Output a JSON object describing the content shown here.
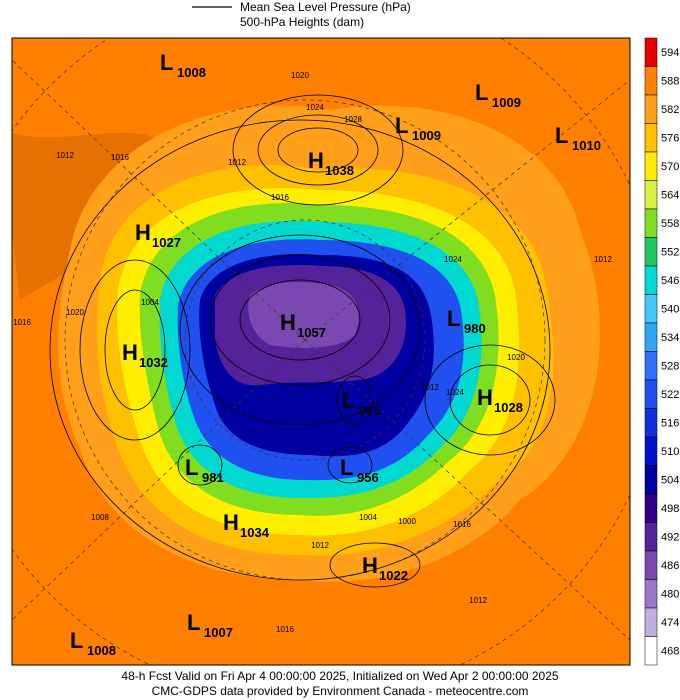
{
  "legend": {
    "line_label": "Mean Sea Level Pressure (hPa)",
    "fill_label": "500-hPa Heights (dam)"
  },
  "colorbar": {
    "values": [
      594,
      588,
      582,
      576,
      570,
      564,
      558,
      552,
      546,
      540,
      534,
      528,
      522,
      516,
      510,
      504,
      498,
      492,
      486,
      480,
      474,
      468
    ],
    "colors": [
      "#e60000",
      "#ff8000",
      "#ff9f1a",
      "#ffc000",
      "#ffee00",
      "#d8f040",
      "#80dd20",
      "#20c860",
      "#00d8d0",
      "#40c8ff",
      "#30a8f8",
      "#3070ff",
      "#2050f0",
      "#1030e0",
      "#0010d0",
      "#0000a0",
      "#330088",
      "#552299",
      "#7a48b0",
      "#9a78c8",
      "#c0b0e0",
      "#ffffff"
    ]
  },
  "centers": [
    {
      "kind": "L",
      "value": 1008
    },
    {
      "kind": "L",
      "value": 1009
    },
    {
      "kind": "L",
      "value": 1009
    },
    {
      "kind": "L",
      "value": 1010
    },
    {
      "kind": "H",
      "value": 1038
    },
    {
      "kind": "H",
      "value": 1027
    },
    {
      "kind": "H",
      "value": 1032
    },
    {
      "kind": "H",
      "value": 1057
    },
    {
      "kind": "L",
      "value": 980
    },
    {
      "kind": "H",
      "value": 1028
    },
    {
      "kind": "L",
      "value": 953
    },
    {
      "kind": "L",
      "value": 981
    },
    {
      "kind": "L",
      "value": 956
    },
    {
      "kind": "H",
      "value": 1034
    },
    {
      "kind": "H",
      "value": 1022
    },
    {
      "kind": "L",
      "value": 1007
    },
    {
      "kind": "L",
      "value": 1008
    }
  ],
  "contour_labels": [
    1020,
    1024,
    1028,
    1012,
    1016,
    1012,
    1016,
    1020,
    1004,
    1008,
    1012,
    1004,
    1000,
    1016,
    1012,
    1016,
    1024,
    1012,
    1020,
    1012,
    1024,
    1016
  ],
  "footer": {
    "line1": "48-h Fcst Valid on Fri Apr  4 00:00:00 2025, Initialized on Wed Apr  2 00:00:00 2025",
    "line2": "CMC-GDPS data provided by Environment Canada - meteocentre.com"
  }
}
